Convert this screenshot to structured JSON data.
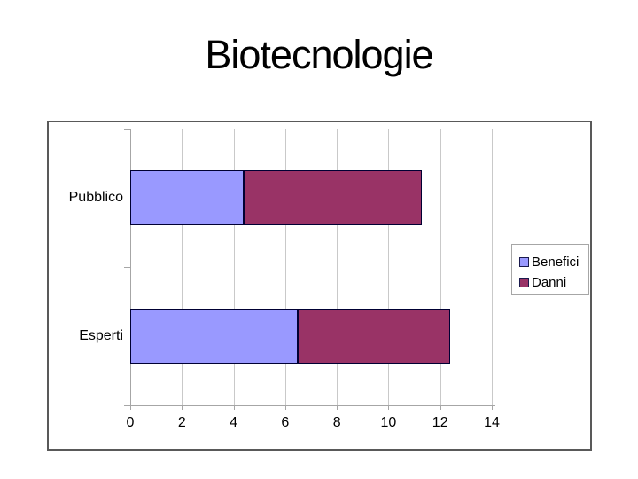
{
  "title": "Biotecnologie",
  "chart_data": {
    "type": "bar",
    "orientation": "horizontal",
    "stacked": true,
    "title": "Biotecnologie",
    "categories": [
      "Pubblico",
      "Esperti"
    ],
    "series": [
      {
        "name": "Benefici",
        "color": "#9999FF",
        "values": [
          4.4,
          6.5
        ]
      },
      {
        "name": "Danni",
        "color": "#993366",
        "values": [
          6.9,
          5.9
        ]
      }
    ],
    "stacked_totals": [
      11.3,
      12.4
    ],
    "xlim": [
      0,
      14
    ],
    "x_ticks": [
      0,
      2,
      4,
      6,
      8,
      10,
      12,
      14
    ],
    "x_tick_labels": [
      "0",
      "2",
      "4",
      "6",
      "8",
      "10",
      "12",
      "14"
    ],
    "grid": true,
    "legend_position": "right-middle",
    "legend_entries": [
      "Benefici",
      "Danni"
    ],
    "colors": {
      "benefici": "#9999FF",
      "danni": "#993366",
      "bar_border": "#000033",
      "gridline": "#c9c9c9",
      "axis_line": "#a6a6a6",
      "frame_border": "#595959",
      "legend_border": "#a6a6a6",
      "text": "#000000"
    }
  }
}
